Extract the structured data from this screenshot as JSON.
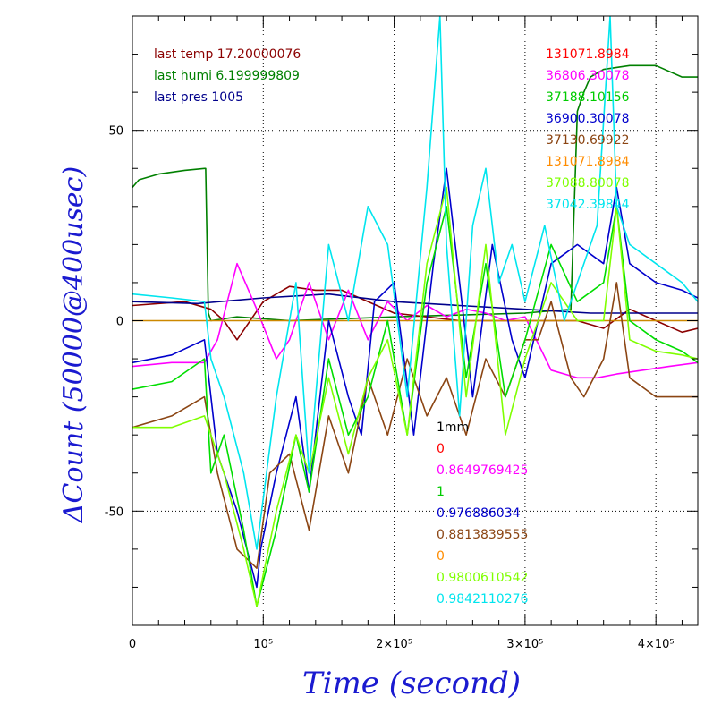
{
  "chart_data": {
    "type": "line",
    "title": "",
    "xlabel": "Time (second)",
    "ylabel": "ΔCount (50000@400usec)",
    "xlim": [
      0,
      432000
    ],
    "ylim": [
      -80,
      80
    ],
    "x_ticks": [
      {
        "value": 0,
        "label": "0"
      },
      {
        "value": 100000,
        "label": "10⁵"
      },
      {
        "value": 200000,
        "label": "2×10⁵"
      },
      {
        "value": 300000,
        "label": "3×10⁵"
      },
      {
        "value": 400000,
        "label": "4×10⁵"
      }
    ],
    "y_ticks": [
      {
        "value": -50,
        "label": "-50"
      },
      {
        "value": 0,
        "label": "0"
      },
      {
        "value": 50,
        "label": "50"
      }
    ],
    "grid": true,
    "environment_labels": [
      {
        "text": "last temp 17.20000076",
        "color": "#8b0000"
      },
      {
        "text": "last humi 6.199999809",
        "color": "#008000"
      },
      {
        "text": "last pres 1005",
        "color": "#00008b"
      }
    ],
    "right_labels": [
      {
        "text": "131071.8984",
        "color": "#ff0000"
      },
      {
        "text": "36806.30078",
        "color": "#ff00ff"
      },
      {
        "text": "37188.10156",
        "color": "#00cc00"
      },
      {
        "text": "36900.30078",
        "color": "#0000cc"
      },
      {
        "text": "37130.69922",
        "color": "#8b4513"
      },
      {
        "text": "131071.8984",
        "color": "#ff8c00"
      },
      {
        "text": "37088.80078",
        "color": "#7fff00"
      },
      {
        "text": "37042.39844",
        "color": "#00e5ee"
      }
    ],
    "center_labels": [
      {
        "text": "1mm",
        "color": "#000000"
      },
      {
        "text": "0",
        "color": "#ff0000"
      },
      {
        "text": "0.8649769425",
        "color": "#ff00ff"
      },
      {
        "text": "1",
        "color": "#00cc00"
      },
      {
        "text": "0.976886034",
        "color": "#0000cc"
      },
      {
        "text": "0.8813839555",
        "color": "#8b4513"
      },
      {
        "text": "0",
        "color": "#ff8c00"
      },
      {
        "text": "0.9800610542",
        "color": "#7fff00"
      },
      {
        "text": "0.9842110276",
        "color": "#00e5ee"
      }
    ],
    "series": [
      {
        "color": "#008000",
        "x": [
          0,
          5000,
          20000,
          40000,
          55000,
          56000,
          58000,
          60000,
          80000,
          120000,
          200000,
          300000,
          335000,
          340000,
          345000,
          350000,
          360000,
          380000,
          400000,
          420000,
          432000
        ],
        "y": [
          35,
          37,
          38.5,
          39.5,
          40,
          40,
          2,
          0,
          1,
          0,
          1,
          2,
          3,
          55,
          60,
          64,
          66,
          67,
          67,
          64,
          64
        ]
      },
      {
        "color": "#8b0000",
        "x": [
          0,
          40000,
          60000,
          70000,
          80000,
          100000,
          120000,
          140000,
          160000,
          200000,
          250000,
          300000,
          340000,
          360000,
          380000,
          400000,
          420000,
          432000
        ],
        "y": [
          4,
          5,
          3,
          0,
          -5,
          5,
          9,
          8,
          8,
          2,
          0,
          0,
          0,
          -2,
          3,
          0,
          -3,
          -2
        ]
      },
      {
        "color": "#00008b",
        "x": [
          0,
          50000,
          100000,
          150000,
          200000,
          250000,
          300000,
          350000,
          400000,
          432000
        ],
        "y": [
          5,
          4.5,
          6,
          7,
          5,
          4,
          3,
          2,
          2,
          2
        ]
      },
      {
        "color": "#ff00ff",
        "x": [
          0,
          30000,
          55000,
          65000,
          80000,
          95000,
          110000,
          120000,
          135000,
          150000,
          165000,
          180000,
          195000,
          210000,
          225000,
          240000,
          255000,
          270000,
          285000,
          300000,
          320000,
          340000,
          355000,
          370000,
          390000,
          410000,
          432000
        ],
        "y": [
          -12,
          -11,
          -11,
          -5,
          15,
          3,
          -10,
          -5,
          10,
          -5,
          8,
          -5,
          5,
          0,
          4,
          1,
          3,
          2,
          0,
          1,
          -13,
          -15,
          -15,
          -14,
          -13,
          -12,
          -11
        ]
      },
      {
        "color": "#cc8800",
        "x": [
          0,
          432000
        ],
        "y": [
          0,
          0
        ]
      },
      {
        "color": "#0000cc",
        "x": [
          0,
          30000,
          55000,
          60000,
          65000,
          80000,
          95000,
          98000,
          110000,
          125000,
          135000,
          150000,
          165000,
          175000,
          185000,
          200000,
          215000,
          230000,
          240000,
          250000,
          260000,
          275000,
          290000,
          300000,
          320000,
          340000,
          360000,
          370000,
          380000,
          400000,
          420000,
          432000
        ],
        "y": [
          -11,
          -9,
          -5,
          -20,
          -35,
          -50,
          -70,
          -60,
          -40,
          -20,
          -45,
          0,
          -20,
          -30,
          5,
          10,
          -30,
          15,
          40,
          10,
          -20,
          20,
          -5,
          -15,
          15,
          20,
          15,
          35,
          15,
          10,
          8,
          6
        ]
      },
      {
        "color": "#8b4513",
        "x": [
          0,
          30000,
          55000,
          65000,
          80000,
          95000,
          105000,
          120000,
          135000,
          150000,
          165000,
          180000,
          195000,
          210000,
          225000,
          240000,
          255000,
          270000,
          285000,
          300000,
          310000,
          320000,
          335000,
          345000,
          360000,
          370000,
          380000,
          400000,
          420000,
          432000
        ],
        "y": [
          -28,
          -25,
          -20,
          -40,
          -60,
          -65,
          -40,
          -35,
          -55,
          -25,
          -40,
          -15,
          -30,
          -10,
          -25,
          -15,
          -30,
          -10,
          -20,
          -5,
          -5,
          5,
          -15,
          -20,
          -10,
          10,
          -15,
          -20,
          -20,
          -20
        ]
      },
      {
        "color": "#00dd00",
        "x": [
          0,
          30000,
          55000,
          60000,
          70000,
          85000,
          95000,
          110000,
          125000,
          135000,
          150000,
          165000,
          180000,
          195000,
          210000,
          225000,
          240000,
          255000,
          270000,
          285000,
          300000,
          320000,
          340000,
          360000,
          370000,
          380000,
          400000,
          420000,
          432000
        ],
        "y": [
          -18,
          -16,
          -10,
          -40,
          -30,
          -55,
          -75,
          -55,
          -30,
          -45,
          -10,
          -30,
          -20,
          0,
          -30,
          10,
          30,
          -15,
          15,
          -20,
          -5,
          20,
          5,
          10,
          30,
          0,
          -5,
          -8,
          -11
        ]
      },
      {
        "color": "#7fff00",
        "x": [
          0,
          30000,
          55000,
          60000,
          70000,
          85000,
          95000,
          110000,
          125000,
          135000,
          150000,
          165000,
          180000,
          195000,
          210000,
          225000,
          240000,
          255000,
          270000,
          285000,
          300000,
          320000,
          340000,
          360000,
          370000,
          380000,
          400000,
          420000,
          432000
        ],
        "y": [
          -28,
          -28,
          -25,
          -30,
          -40,
          -60,
          -75,
          -50,
          -30,
          -40,
          -15,
          -35,
          -15,
          -5,
          -30,
          15,
          35,
          -20,
          20,
          -30,
          -10,
          10,
          0,
          0,
          30,
          -5,
          -8,
          -9,
          -10
        ]
      },
      {
        "color": "#00e5ee",
        "x": [
          0,
          30000,
          55000,
          60000,
          70000,
          85000,
          95000,
          110000,
          125000,
          135000,
          150000,
          165000,
          180000,
          195000,
          210000,
          225000,
          235000,
          240000,
          250000,
          260000,
          270000,
          280000,
          290000,
          300000,
          315000,
          330000,
          345000,
          355000,
          365000,
          370000,
          380000,
          400000,
          420000,
          432000
        ],
        "y": [
          7,
          6,
          5,
          -10,
          -20,
          -40,
          -60,
          -20,
          10,
          -40,
          20,
          0,
          30,
          20,
          -20,
          35,
          80,
          20,
          -25,
          25,
          40,
          10,
          20,
          5,
          25,
          0,
          15,
          25,
          80,
          30,
          20,
          15,
          10,
          5
        ]
      }
    ]
  },
  "axis_labels": {
    "x_title": "Time (second)",
    "y_title": "ΔCount (50000@400usec)"
  }
}
